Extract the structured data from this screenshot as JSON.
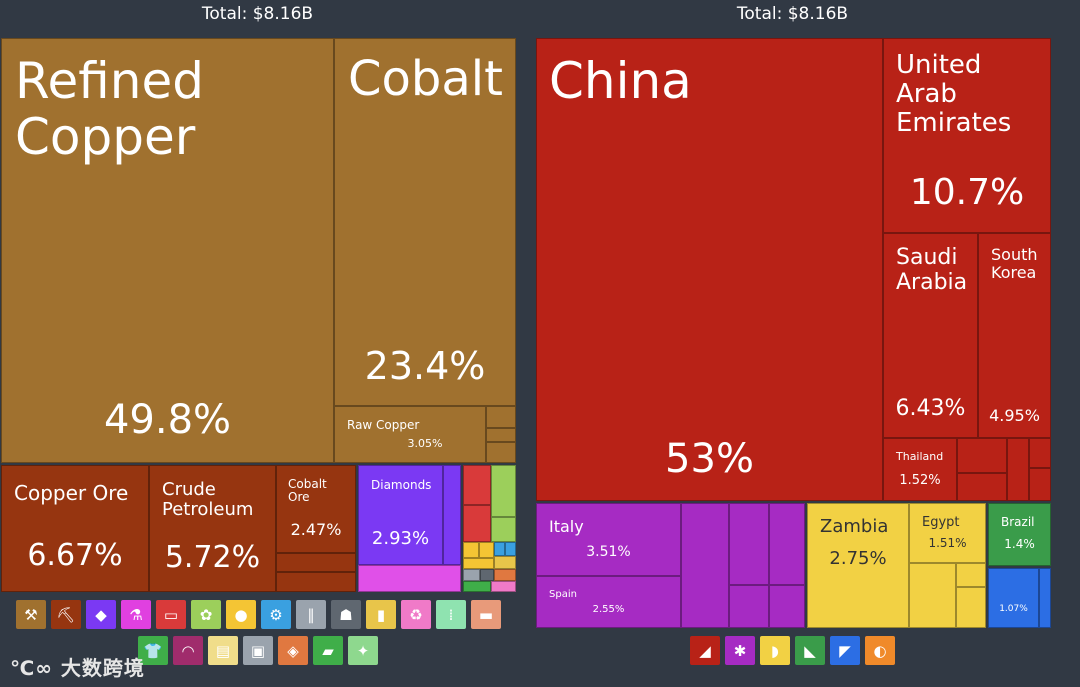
{
  "colors": {
    "background": "#313944",
    "metals": "#a0712f",
    "mineral": "#963510",
    "precious": "#7b39f3",
    "country_asia": "#b82217",
    "country_europe": "#a62bc3",
    "country_africa": "#f2d144",
    "country_south_america": "#3a9c4a",
    "country_north_america": "#2c6ee4"
  },
  "totals": {
    "left": "Total: $8.16B",
    "right": "Total: $8.16B"
  },
  "chart_data": [
    {
      "type": "treemap",
      "title": "Total: $8.16B",
      "cells": [
        {
          "name": "Refined Copper",
          "value": 49.8,
          "label": "49.8%"
        },
        {
          "name": "Cobalt",
          "value": 23.4,
          "label": "23.4%"
        },
        {
          "name": "Raw Copper",
          "value": 3.05,
          "label": "3.05%"
        },
        {
          "name": "Copper Ore",
          "value": 6.67,
          "label": "6.67%"
        },
        {
          "name": "Crude Petroleum",
          "value": 5.72,
          "label": "5.72%"
        },
        {
          "name": "Cobalt Ore",
          "value": 2.47,
          "label": "2.47%"
        },
        {
          "name": "Diamonds",
          "value": 2.93,
          "label": "2.93%"
        }
      ]
    },
    {
      "type": "treemap",
      "title": "Total: $8.16B",
      "cells": [
        {
          "name": "China",
          "value": 53,
          "label": "53%"
        },
        {
          "name": "United Arab Emirates",
          "value": 10.7,
          "label": "10.7%"
        },
        {
          "name": "Saudi Arabia",
          "value": 6.43,
          "label": "6.43%"
        },
        {
          "name": "South Korea",
          "value": 4.95,
          "label": "4.95%"
        },
        {
          "name": "Thailand",
          "value": 1.52,
          "label": "1.52%"
        },
        {
          "name": "Italy",
          "value": 3.51,
          "label": "3.51%"
        },
        {
          "name": "Spain",
          "value": 2.55,
          "label": "2.55%"
        },
        {
          "name": "Zambia",
          "value": 2.75,
          "label": "2.75%"
        },
        {
          "name": "Egypt",
          "value": 1.51,
          "label": "1.51%"
        },
        {
          "name": "Brazil",
          "value": 1.4,
          "label": "1.4%"
        },
        {
          "name": "",
          "value": 1.07,
          "label": "1.07%"
        }
      ]
    }
  ],
  "cells": {
    "refined_copper": {
      "name": "Refined\nCopper",
      "pct": "49.8%"
    },
    "cobalt": {
      "name": "Cobalt",
      "pct": "23.4%"
    },
    "raw_copper": {
      "name": "Raw Copper",
      "pct": "3.05%"
    },
    "copper_ore": {
      "name": "Copper Ore",
      "pct": "6.67%"
    },
    "crude_petroleum": {
      "name": "Crude\nPetroleum",
      "pct": "5.72%"
    },
    "cobalt_ore": {
      "name": "Cobalt\nOre",
      "pct": "2.47%"
    },
    "diamonds": {
      "name": "Diamonds",
      "pct": "2.93%"
    },
    "china": {
      "name": "China",
      "pct": "53%"
    },
    "uae": {
      "name": "United\nArab\nEmirates",
      "pct": "10.7%"
    },
    "saudi": {
      "name": "Saudi\nArabia",
      "pct": "6.43%"
    },
    "south_korea": {
      "name": "South\nKorea",
      "pct": "4.95%"
    },
    "thailand": {
      "name": "Thailand",
      "pct": "1.52%"
    },
    "italy": {
      "name": "Italy",
      "pct": "3.51%"
    },
    "spain": {
      "name": "Spain",
      "pct": "2.55%"
    },
    "zambia": {
      "name": "Zambia",
      "pct": "2.75%"
    },
    "egypt": {
      "name": "Egypt",
      "pct": "1.51%"
    },
    "brazil": {
      "name": "Brazil",
      "pct": "1.4%"
    },
    "small_na": {
      "pct": "1.07%"
    }
  },
  "legend_left": [
    {
      "icon": "anvil-icon",
      "color": "#a0712f",
      "glyph": "⚒"
    },
    {
      "icon": "pickaxe-icon",
      "color": "#963510",
      "glyph": "⛏"
    },
    {
      "icon": "diamond-icon",
      "color": "#7b39f3",
      "glyph": "◆"
    },
    {
      "icon": "flask-icon",
      "color": "#e040e0",
      "glyph": "⚗"
    },
    {
      "icon": "pipe-icon",
      "color": "#d93a3a",
      "glyph": "▭"
    },
    {
      "icon": "wheat-icon",
      "color": "#9ccf5b",
      "glyph": "✿"
    },
    {
      "icon": "orange-icon",
      "color": "#f4c534",
      "glyph": "●"
    },
    {
      "icon": "gear-icon",
      "color": "#3aa0e0",
      "glyph": "⚙"
    },
    {
      "icon": "road-icon",
      "color": "#9aa3ad",
      "glyph": "∥"
    },
    {
      "icon": "easel-icon",
      "color": "#5f6770",
      "glyph": "☗"
    },
    {
      "icon": "bottle-icon",
      "color": "#e8c54a",
      "glyph": "▮"
    },
    {
      "icon": "recycle-icon",
      "color": "#f07ac8",
      "glyph": "♻"
    },
    {
      "icon": "stones-icon",
      "color": "#8fe3b0",
      "glyph": "⁞"
    },
    {
      "icon": "animal-icon",
      "color": "#e89a7a",
      "glyph": "▬"
    }
  ],
  "legend_left_row2": [
    {
      "icon": "shirt-icon",
      "color": "#3fae49",
      "glyph": "👕"
    },
    {
      "icon": "gauge-icon",
      "color": "#a02c6c",
      "glyph": "◠"
    },
    {
      "icon": "paper-icon",
      "color": "#f0dd8a",
      "glyph": "▤"
    },
    {
      "icon": "box-icon",
      "color": "#9aa3ad",
      "glyph": "▣"
    },
    {
      "icon": "ore-icon",
      "color": "#e07840",
      "glyph": "◈"
    },
    {
      "icon": "shoe-icon",
      "color": "#3fae49",
      "glyph": "▰"
    },
    {
      "icon": "hide-icon",
      "color": "#8ed88e",
      "glyph": "✦"
    }
  ],
  "legend_right": [
    {
      "icon": "asia-icon",
      "color": "#b82217",
      "glyph": "◢"
    },
    {
      "icon": "europe-icon",
      "color": "#a62bc3",
      "glyph": "✱"
    },
    {
      "icon": "africa-icon",
      "color": "#f2d144",
      "glyph": "◗"
    },
    {
      "icon": "south-america-icon",
      "color": "#3a9c4a",
      "glyph": "◣"
    },
    {
      "icon": "north-america-icon",
      "color": "#2c6ee4",
      "glyph": "◤"
    },
    {
      "icon": "oceania-icon",
      "color": "#f08a2a",
      "glyph": "◐"
    }
  ],
  "watermark": "大数跨境"
}
